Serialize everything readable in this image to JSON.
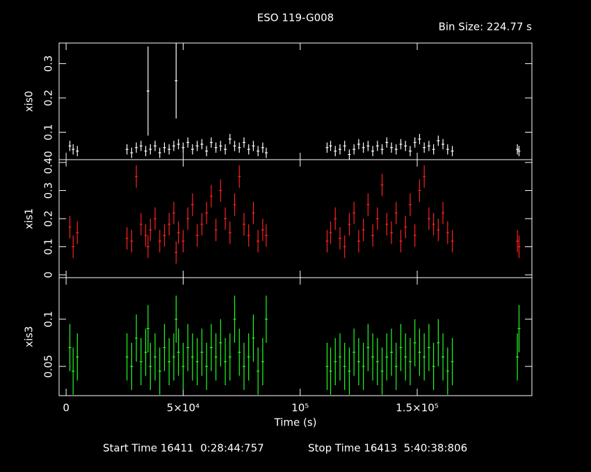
{
  "title": "ESO 119-G008",
  "bin_size": "Bin Size: 224.77 s",
  "footer": {
    "start": "Start Time 16411  0:28:44:757",
    "stop": "Stop Time 16413  5:40:38:806"
  },
  "chart_data": [
    {
      "type": "errorbar",
      "ylabel": "xis0",
      "color": "#ffffff",
      "x": [
        1600,
        3000,
        4800,
        26000,
        28000,
        30000,
        32000,
        34000,
        35000,
        36000,
        38000,
        40000,
        42000,
        44000,
        46000,
        47000,
        48000,
        50000,
        52000,
        54000,
        56000,
        58000,
        60000,
        62000,
        64000,
        66000,
        68000,
        70000,
        72000,
        74000,
        76000,
        78000,
        80000,
        82000,
        84000,
        85500,
        111500,
        113000,
        115000,
        117000,
        119000,
        121000,
        123000,
        125000,
        127000,
        129000,
        131000,
        133000,
        135000,
        137000,
        139000,
        141000,
        143000,
        145000,
        147000,
        149000,
        151000,
        153000,
        155000,
        157000,
        159000,
        161000,
        163000,
        165000,
        192800,
        193500
      ],
      "values": [
        0.06,
        0.05,
        0.045,
        0.05,
        0.04,
        0.055,
        0.06,
        0.045,
        0.22,
        0.05,
        0.06,
        0.04,
        0.055,
        0.05,
        0.06,
        0.25,
        0.065,
        0.055,
        0.07,
        0.05,
        0.06,
        0.065,
        0.045,
        0.07,
        0.055,
        0.06,
        0.05,
        0.08,
        0.06,
        0.055,
        0.07,
        0.05,
        0.06,
        0.045,
        0.055,
        0.04,
        0.055,
        0.06,
        0.045,
        0.05,
        0.06,
        0.035,
        0.05,
        0.065,
        0.055,
        0.06,
        0.045,
        0.06,
        0.05,
        0.07,
        0.055,
        0.05,
        0.065,
        0.06,
        0.045,
        0.07,
        0.08,
        0.055,
        0.06,
        0.05,
        0.075,
        0.065,
        0.05,
        0.045,
        0.05,
        0.045
      ],
      "errors": [
        0.015,
        0.015,
        0.015,
        0.015,
        0.015,
        0.015,
        0.015,
        0.015,
        0.13,
        0.015,
        0.015,
        0.015,
        0.015,
        0.015,
        0.015,
        0.11,
        0.015,
        0.015,
        0.015,
        0.015,
        0.015,
        0.015,
        0.015,
        0.015,
        0.015,
        0.015,
        0.015,
        0.015,
        0.015,
        0.015,
        0.015,
        0.015,
        0.015,
        0.015,
        0.015,
        0.015,
        0.015,
        0.015,
        0.015,
        0.015,
        0.015,
        0.015,
        0.015,
        0.015,
        0.015,
        0.015,
        0.015,
        0.015,
        0.015,
        0.015,
        0.015,
        0.015,
        0.015,
        0.015,
        0.015,
        0.015,
        0.015,
        0.015,
        0.015,
        0.015,
        0.015,
        0.015,
        0.015,
        0.015,
        0.015,
        0.015
      ],
      "xlim": [
        -3000,
        199000
      ],
      "ylim": [
        0.02,
        0.36
      ],
      "yticks": [
        0.1,
        0.2,
        0.3
      ]
    },
    {
      "type": "errorbar",
      "ylabel": "xis1",
      "color": "#ff2020",
      "x": [
        1600,
        3000,
        4800,
        26000,
        28000,
        30000,
        32000,
        34000,
        35000,
        36000,
        38000,
        40000,
        42000,
        44000,
        46000,
        47000,
        48000,
        50000,
        52000,
        54000,
        56000,
        58000,
        60000,
        62000,
        64000,
        66000,
        68000,
        70000,
        72000,
        74000,
        76000,
        78000,
        80000,
        82000,
        84000,
        85500,
        111500,
        113000,
        115000,
        117000,
        119000,
        121000,
        123000,
        125000,
        127000,
        129000,
        131000,
        133000,
        135000,
        137000,
        139000,
        141000,
        143000,
        145000,
        147000,
        149000,
        151000,
        153000,
        155000,
        157000,
        159000,
        161000,
        163000,
        165000,
        192800,
        193500
      ],
      "values": [
        0.17,
        0.1,
        0.15,
        0.13,
        0.12,
        0.35,
        0.18,
        0.14,
        0.1,
        0.16,
        0.2,
        0.12,
        0.14,
        0.18,
        0.22,
        0.08,
        0.15,
        0.12,
        0.2,
        0.25,
        0.14,
        0.18,
        0.22,
        0.28,
        0.16,
        0.3,
        0.2,
        0.15,
        0.25,
        0.35,
        0.18,
        0.14,
        0.22,
        0.12,
        0.16,
        0.14,
        0.12,
        0.15,
        0.2,
        0.13,
        0.1,
        0.18,
        0.22,
        0.12,
        0.16,
        0.25,
        0.14,
        0.2,
        0.32,
        0.18,
        0.15,
        0.22,
        0.12,
        0.17,
        0.25,
        0.14,
        0.3,
        0.35,
        0.2,
        0.18,
        0.16,
        0.22,
        0.15,
        0.12,
        0.12,
        0.1
      ],
      "errors": [
        0.04,
        0.04,
        0.04,
        0.04,
        0.04,
        0.04,
        0.04,
        0.04,
        0.04,
        0.04,
        0.04,
        0.04,
        0.04,
        0.04,
        0.04,
        0.04,
        0.04,
        0.04,
        0.04,
        0.04,
        0.04,
        0.04,
        0.04,
        0.04,
        0.04,
        0.04,
        0.04,
        0.04,
        0.04,
        0.04,
        0.04,
        0.04,
        0.04,
        0.04,
        0.04,
        0.04,
        0.04,
        0.04,
        0.04,
        0.04,
        0.04,
        0.04,
        0.04,
        0.04,
        0.04,
        0.04,
        0.04,
        0.04,
        0.04,
        0.04,
        0.04,
        0.04,
        0.04,
        0.04,
        0.04,
        0.04,
        0.04,
        0.04,
        0.04,
        0.04,
        0.04,
        0.04,
        0.04,
        0.04,
        0.04,
        0.04
      ],
      "xlim": [
        -3000,
        199000
      ],
      "ylim": [
        -0.01,
        0.41
      ],
      "yticks": [
        0,
        0.1,
        0.2,
        0.3,
        {
          "value": 0.4,
          "label": "0.40"
        }
      ]
    },
    {
      "type": "errorbar",
      "ylabel": "xis3",
      "color": "#20ff20",
      "xlabel": "Time (s)",
      "x": [
        1600,
        3000,
        4800,
        26000,
        28000,
        30000,
        32000,
        34000,
        35000,
        36000,
        38000,
        40000,
        42000,
        44000,
        46000,
        47000,
        48000,
        50000,
        52000,
        54000,
        56000,
        58000,
        60000,
        62000,
        64000,
        66000,
        68000,
        70000,
        72000,
        74000,
        76000,
        78000,
        80000,
        82000,
        84000,
        85500,
        111500,
        113000,
        115000,
        117000,
        119000,
        121000,
        123000,
        125000,
        127000,
        129000,
        131000,
        133000,
        135000,
        137000,
        139000,
        141000,
        143000,
        145000,
        147000,
        149000,
        151000,
        153000,
        155000,
        157000,
        159000,
        161000,
        163000,
        165000,
        192800,
        193500
      ],
      "values": [
        0.07,
        0.045,
        0.06,
        0.06,
        0.05,
        0.08,
        0.055,
        0.065,
        0.09,
        0.05,
        0.06,
        0.045,
        0.07,
        0.055,
        0.06,
        0.1,
        0.065,
        0.05,
        0.07,
        0.06,
        0.055,
        0.065,
        0.05,
        0.07,
        0.06,
        0.075,
        0.055,
        0.06,
        0.1,
        0.065,
        0.05,
        0.06,
        0.08,
        0.045,
        0.055,
        0.1,
        0.05,
        0.045,
        0.055,
        0.06,
        0.05,
        0.045,
        0.065,
        0.055,
        0.05,
        0.07,
        0.06,
        0.055,
        0.045,
        0.06,
        0.065,
        0.05,
        0.07,
        0.06,
        0.055,
        0.075,
        0.065,
        0.06,
        0.07,
        0.05,
        0.075,
        0.06,
        0.045,
        0.055,
        0.06,
        0.09
      ],
      "errors": [
        0.025,
        0.025,
        0.025,
        0.025,
        0.025,
        0.025,
        0.025,
        0.025,
        0.025,
        0.025,
        0.025,
        0.025,
        0.025,
        0.025,
        0.025,
        0.025,
        0.025,
        0.025,
        0.025,
        0.025,
        0.025,
        0.025,
        0.025,
        0.025,
        0.025,
        0.025,
        0.025,
        0.025,
        0.025,
        0.025,
        0.025,
        0.025,
        0.025,
        0.025,
        0.025,
        0.025,
        0.025,
        0.025,
        0.025,
        0.025,
        0.025,
        0.025,
        0.025,
        0.025,
        0.025,
        0.025,
        0.025,
        0.025,
        0.025,
        0.025,
        0.025,
        0.025,
        0.025,
        0.025,
        0.025,
        0.025,
        0.025,
        0.025,
        0.025,
        0.025,
        0.025,
        0.025,
        0.025,
        0.025,
        0.025,
        0.025
      ],
      "xlim": [
        -3000,
        199000
      ],
      "ylim": [
        0.019,
        0.144
      ],
      "yticks": [
        0.05,
        0.1
      ],
      "xticks": [
        0,
        {
          "value": 50000,
          "label": "5×10⁴"
        },
        {
          "value": 100000,
          "label": "10⁵"
        },
        {
          "value": 150000,
          "label": "1.5×10⁵"
        }
      ]
    }
  ]
}
